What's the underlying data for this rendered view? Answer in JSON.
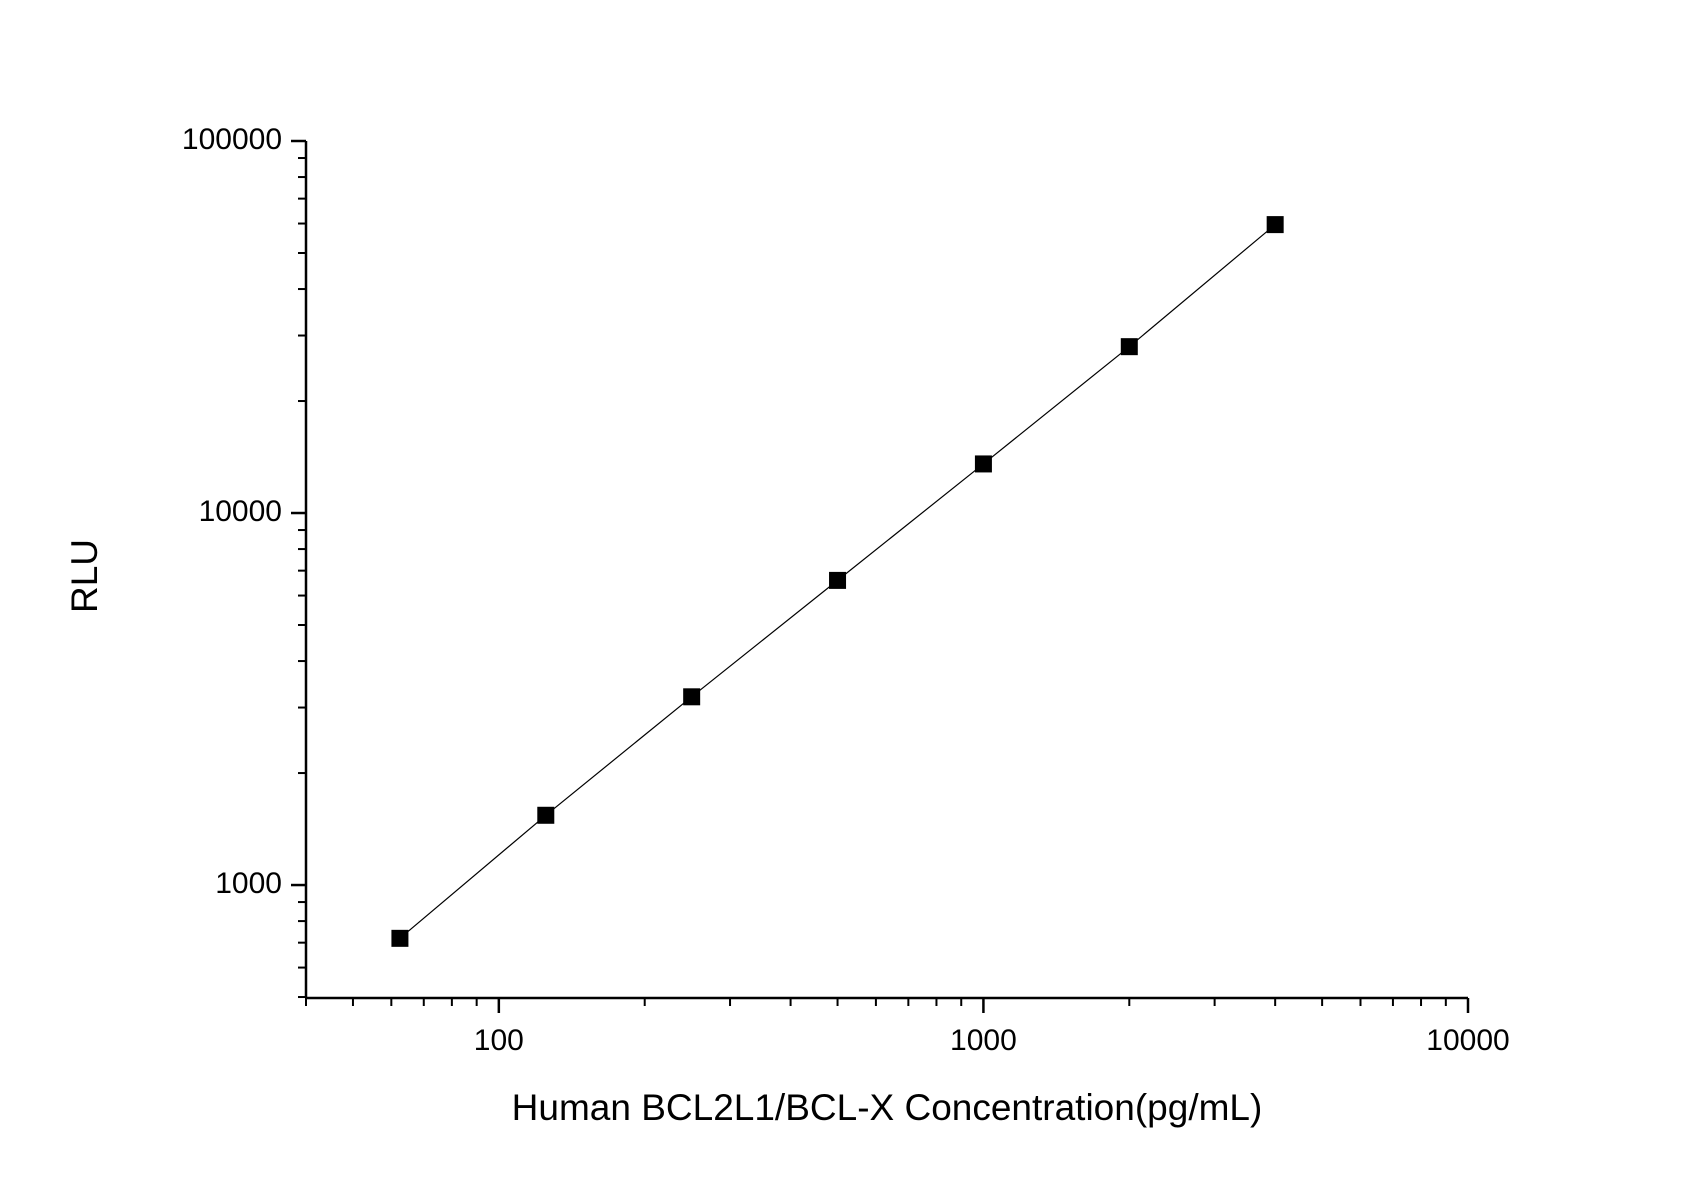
{
  "chart_data": {
    "type": "line",
    "x_label": "Human BCL2L1/BCL-X Concentration(pg/mL)",
    "y_label": "RLU",
    "x": [
      62.5,
      125,
      250,
      500,
      1000,
      2000,
      4000
    ],
    "series": [
      {
        "color": "#000000",
        "values": [
          719,
          1540,
          3206,
          6590,
          13550,
          28000,
          59600
        ]
      }
    ],
    "xlim": [
      40,
      10000
    ],
    "ylim": [
      497,
      100000
    ],
    "xticks": [
      100,
      1000,
      10000
    ],
    "yticks": [
      1000,
      10000,
      100000
    ],
    "xscale": "log",
    "yscale": "log",
    "marker": "square",
    "grid": false
  }
}
